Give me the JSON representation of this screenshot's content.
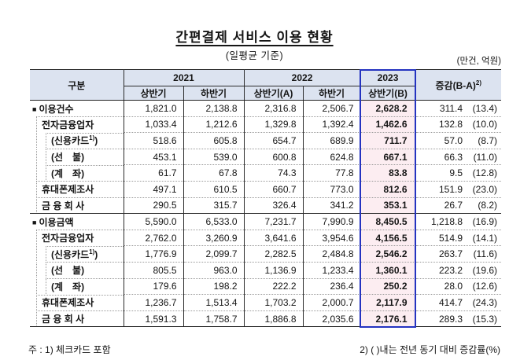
{
  "title": "간편결제 서비스 이용 현황",
  "subtitle": "(일평균 기준)",
  "unit_label": "(만건, 억원)",
  "colors": {
    "header_bg": "#dce3f0",
    "highlight_bg": "#fcedf1",
    "highlight_border": "#2433c0",
    "solid_line": "#2b2b2b",
    "dotted_line": "#9a9a9a"
  },
  "header": {
    "col_group": "구분",
    "years": [
      "2021",
      "2022",
      "2023"
    ],
    "halves": [
      "상반기",
      "하반기",
      "상반기(A)",
      "하반기",
      "상반기(B)"
    ],
    "change_label": "증감(B-A)",
    "change_sup": "2)"
  },
  "rows": [
    {
      "marker": "■",
      "label": "이용건수",
      "level": 0,
      "values": [
        "1,821.0",
        "2,138.8",
        "2,316.8",
        "2,506.7",
        "2,628.2"
      ],
      "change": "311.4",
      "pct": "(13.4)"
    },
    {
      "label": "전자금융업자",
      "level": 1,
      "values": [
        "1,033.4",
        "1,212.6",
        "1,329.8",
        "1,392.4",
        "1,462.6"
      ],
      "change": "132.8",
      "pct": "(10.0)"
    },
    {
      "label": "(신용카드",
      "sup": "1)",
      "tail": ")",
      "level": 2,
      "values": [
        "518.6",
        "605.8",
        "654.7",
        "689.9",
        "711.7"
      ],
      "change": "57.0",
      "pct": "(8.7)"
    },
    {
      "label": "(선　불)",
      "level": 2,
      "values": [
        "453.1",
        "539.0",
        "600.8",
        "624.8",
        "667.1"
      ],
      "change": "66.3",
      "pct": "(11.0)"
    },
    {
      "label": "(계　좌)",
      "level": 2,
      "values": [
        "61.7",
        "67.8",
        "74.3",
        "77.8",
        "83.8"
      ],
      "change": "9.5",
      "pct": "(12.8)"
    },
    {
      "label": "휴대폰제조사",
      "level": 1,
      "values": [
        "497.1",
        "610.5",
        "660.7",
        "773.0",
        "812.6"
      ],
      "change": "151.9",
      "pct": "(23.0)"
    },
    {
      "label": "금 융 회 사",
      "level": 1,
      "values": [
        "290.5",
        "315.7",
        "326.4",
        "341.2",
        "353.1"
      ],
      "change": "26.7",
      "pct": "(8.2)"
    },
    {
      "marker": "■",
      "label": "이용금액",
      "level": 0,
      "section_start": true,
      "values": [
        "5,590.0",
        "6,533.0",
        "7,231.7",
        "7,990.9",
        "8,450.5"
      ],
      "change": "1,218.8",
      "pct": "(16.9)"
    },
    {
      "label": "전자금융업자",
      "level": 1,
      "values": [
        "2,762.0",
        "3,260.9",
        "3,641.6",
        "3,954.6",
        "4,156.5"
      ],
      "change": "514.9",
      "pct": "(14.1)"
    },
    {
      "label": "(신용카드",
      "sup": "1)",
      "tail": ")",
      "level": 2,
      "values": [
        "1,776.9",
        "2,099.7",
        "2,282.5",
        "2,484.8",
        "2,546.2"
      ],
      "change": "263.7",
      "pct": "(11.6)"
    },
    {
      "label": "(선　불)",
      "level": 2,
      "values": [
        "805.5",
        "963.0",
        "1,136.9",
        "1,233.4",
        "1,360.1"
      ],
      "change": "223.2",
      "pct": "(19.6)"
    },
    {
      "label": "(계　좌)",
      "level": 2,
      "values": [
        "179.6",
        "198.2",
        "222.2",
        "236.4",
        "250.2"
      ],
      "change": "28.0",
      "pct": "(12.6)"
    },
    {
      "label": "휴대폰제조사",
      "level": 1,
      "values": [
        "1,236.7",
        "1,513.4",
        "1,703.2",
        "2,000.7",
        "2,117.9"
      ],
      "change": "414.7",
      "pct": "(24.3)"
    },
    {
      "label": "금 융 회 사",
      "level": 1,
      "values": [
        "1,591.3",
        "1,758.7",
        "1,886.8",
        "2,035.6",
        "2,176.1"
      ],
      "change": "289.3",
      "pct": "(15.3)"
    }
  ],
  "footnotes": [
    "주 : 1) 체크카드 포함",
    "2) (  )내는 전년 동기 대비 증감률(%)"
  ]
}
